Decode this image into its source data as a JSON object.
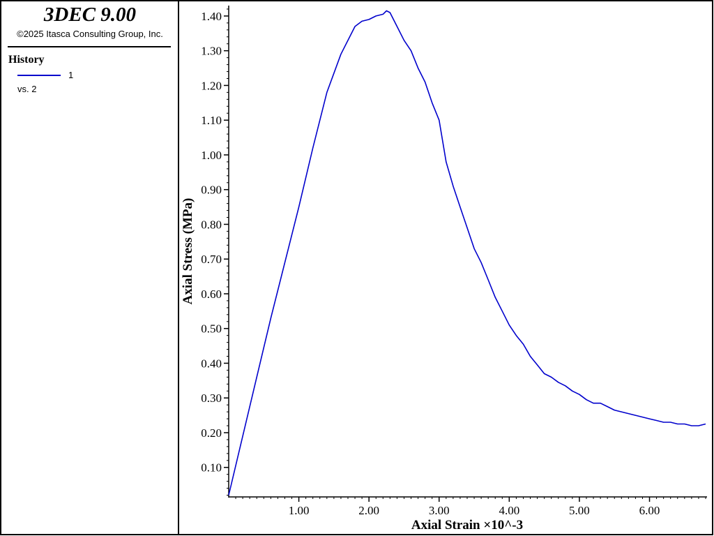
{
  "app": {
    "title": "3DEC 9.00",
    "copyright": "©2025 Itasca Consulting Group, Inc."
  },
  "legend": {
    "heading": "History",
    "series_label": "1",
    "vs_label": "vs. 2",
    "line_color": "#0000cc"
  },
  "chart_data": {
    "type": "line",
    "title": "",
    "xlabel": "Axial Strain ×10^-3",
    "ylabel": "Axial Stress (MPa)",
    "xlim": [
      0,
      6.82
    ],
    "ylim": [
      0.015,
      1.43
    ],
    "x_ticks": [
      1,
      2,
      3,
      4,
      5,
      6
    ],
    "x_tick_labels": [
      "1.00",
      "2.00",
      "3.00",
      "4.00",
      "5.00",
      "6.00"
    ],
    "y_ticks": [
      0.1,
      0.2,
      0.3,
      0.4,
      0.5,
      0.6,
      0.7,
      0.8,
      0.9,
      1.0,
      1.1,
      1.2,
      1.3,
      1.4
    ],
    "y_tick_labels": [
      "0.10",
      "0.20",
      "0.30",
      "0.40",
      "0.50",
      "0.60",
      "0.70",
      "0.80",
      "0.90",
      "1.00",
      "1.10",
      "1.20",
      "1.30",
      "1.40"
    ],
    "grid": false,
    "legend_position": "left-panel",
    "series": [
      {
        "name": "1",
        "color": "#0000cc",
        "x": [
          0.0,
          0.2,
          0.4,
          0.6,
          0.8,
          1.0,
          1.2,
          1.4,
          1.6,
          1.8,
          1.9,
          2.0,
          2.1,
          2.2,
          2.25,
          2.3,
          2.4,
          2.5,
          2.6,
          2.7,
          2.8,
          2.9,
          3.0,
          3.1,
          3.2,
          3.3,
          3.4,
          3.5,
          3.6,
          3.7,
          3.8,
          3.9,
          4.0,
          4.1,
          4.2,
          4.3,
          4.4,
          4.5,
          4.6,
          4.7,
          4.8,
          4.9,
          5.0,
          5.1,
          5.2,
          5.3,
          5.4,
          5.5,
          5.6,
          5.7,
          5.8,
          5.9,
          6.0,
          6.1,
          6.2,
          6.3,
          6.4,
          6.5,
          6.6,
          6.7,
          6.8
        ],
        "y": [
          0.02,
          0.19,
          0.36,
          0.53,
          0.69,
          0.85,
          1.02,
          1.18,
          1.29,
          1.37,
          1.385,
          1.39,
          1.4,
          1.405,
          1.415,
          1.41,
          1.37,
          1.33,
          1.3,
          1.25,
          1.21,
          1.15,
          1.1,
          0.98,
          0.91,
          0.85,
          0.79,
          0.73,
          0.69,
          0.64,
          0.59,
          0.55,
          0.51,
          0.48,
          0.455,
          0.42,
          0.395,
          0.37,
          0.36,
          0.345,
          0.335,
          0.32,
          0.31,
          0.295,
          0.285,
          0.285,
          0.275,
          0.265,
          0.26,
          0.255,
          0.25,
          0.245,
          0.24,
          0.235,
          0.23,
          0.23,
          0.225,
          0.225,
          0.22,
          0.22,
          0.225
        ]
      }
    ]
  }
}
